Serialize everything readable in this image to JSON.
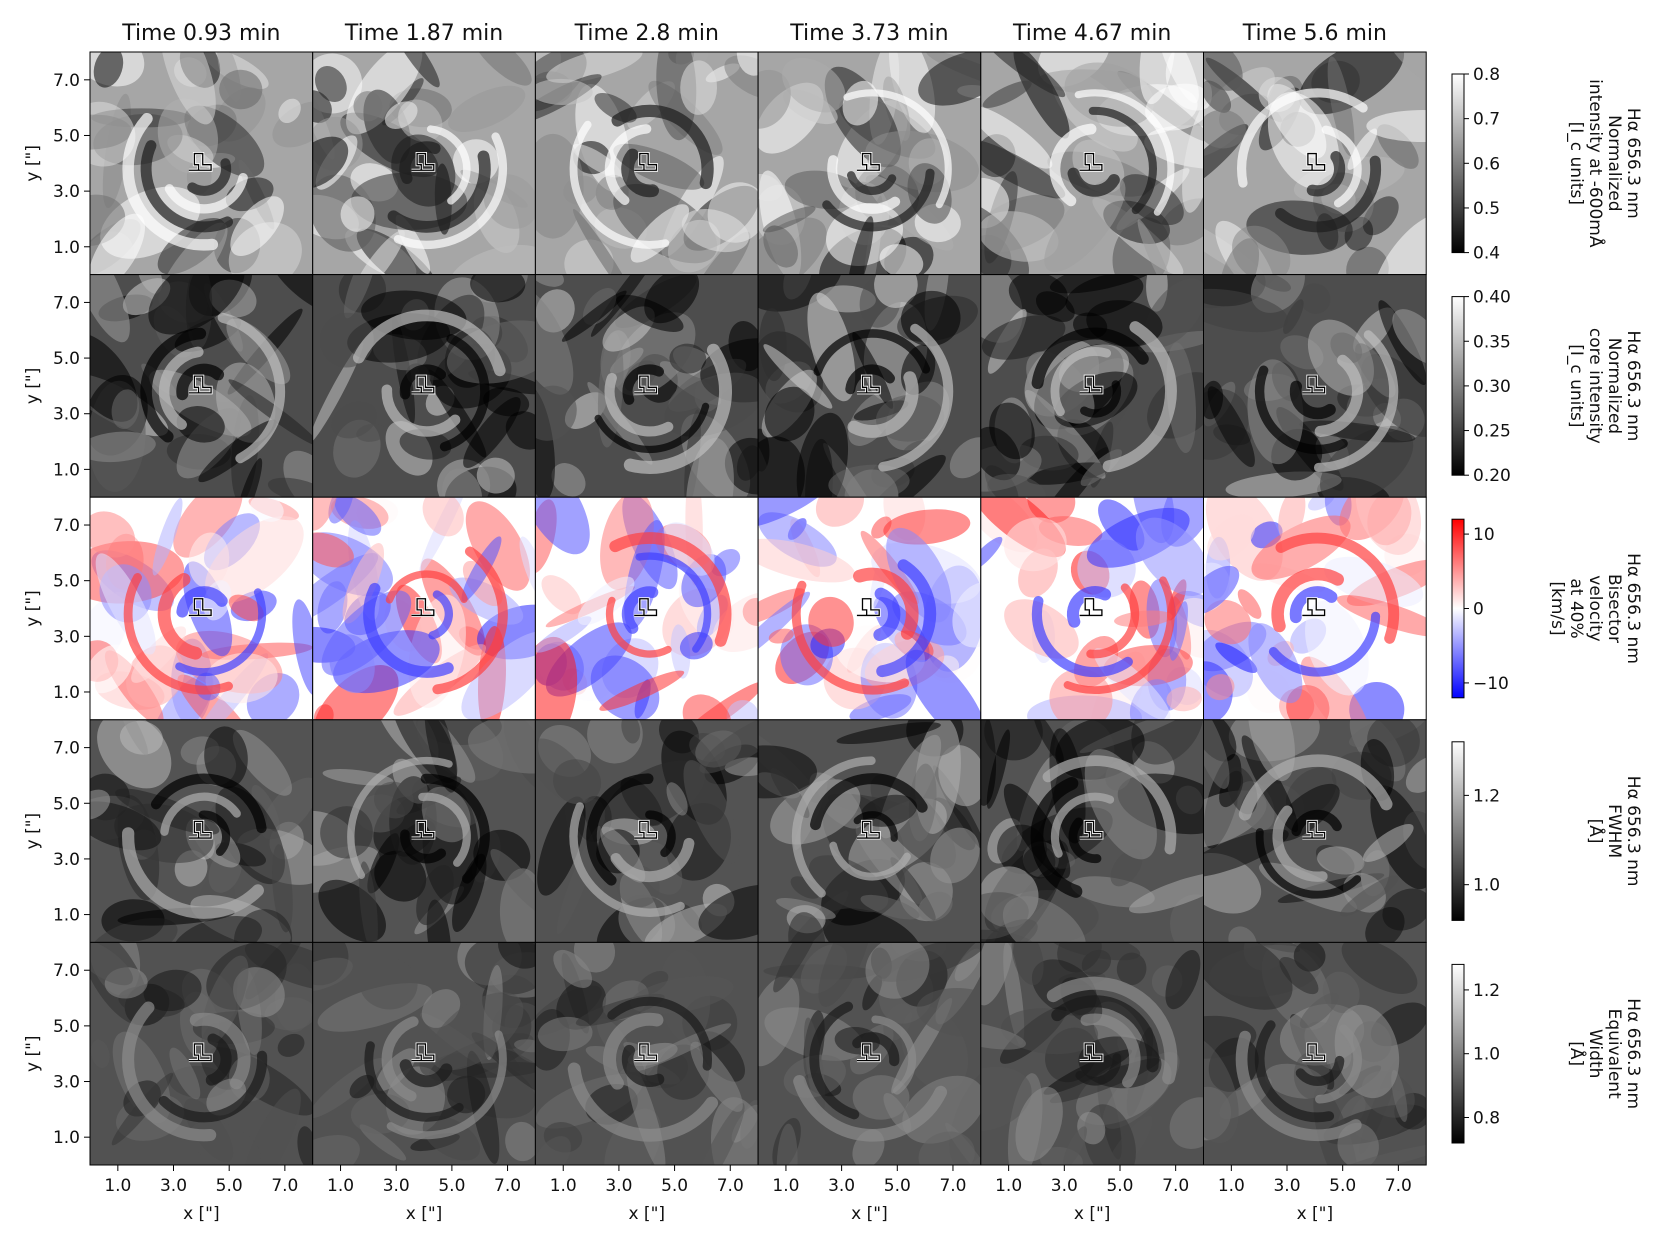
{
  "chart_data": {
    "type": "heatmap",
    "columns": [
      "Time 0.93 min",
      "Time 1.87 min",
      "Time 2.8 min",
      "Time 3.73 min",
      "Time 4.67 min",
      "Time 5.6 min"
    ],
    "xlabel": "x [\"]",
    "ylabel": "y [\"]",
    "x_ticks": [
      "1.0",
      "3.0",
      "5.0",
      "7.0"
    ],
    "y_ticks": [
      "7.0",
      "5.0",
      "3.0",
      "1.0"
    ],
    "xlim": [
      0,
      8
    ],
    "ylim": [
      0,
      8
    ],
    "contour_color": "#000000",
    "rows": [
      {
        "label_lines": [
          "Hα 656.3 nm",
          "Normalized",
          "intensity at -600mÅ",
          "[I_c units]"
        ],
        "cmap": "gray",
        "vmin": 0.4,
        "vmax": 0.8,
        "ticks": [
          "0.8",
          "0.7",
          "0.6",
          "0.5",
          "0.4"
        ],
        "tick_values": [
          0.8,
          0.7,
          0.6,
          0.5,
          0.4
        ],
        "base_level": 0.66,
        "contrast": 0.12
      },
      {
        "label_lines": [
          "Hα 656.3 nm",
          "Normalized",
          "core intensity",
          "[I_c units]"
        ],
        "cmap": "gray",
        "vmin": 0.2,
        "vmax": 0.4,
        "ticks": [
          "0.40",
          "0.35",
          "0.30",
          "0.25",
          "0.20"
        ],
        "tick_values": [
          0.4,
          0.35,
          0.3,
          0.25,
          0.2
        ],
        "base_level": 0.26,
        "contrast": 0.05
      },
      {
        "label_lines": [
          "Hα 656.3 nm",
          "Bisector",
          "velocity",
          "at 40%",
          "[km/s]"
        ],
        "cmap": "bwr",
        "vmin": -12,
        "vmax": 12,
        "ticks": [
          "10",
          "0",
          "−10"
        ],
        "tick_values": [
          10,
          0,
          -10
        ],
        "base_level": 0,
        "contrast": 5
      },
      {
        "label_lines": [
          "Hα 656.3 nm",
          "FWHM",
          "[Å]"
        ],
        "cmap": "gray",
        "vmin": 0.92,
        "vmax": 1.32,
        "ticks": [
          "1.2",
          "1.0"
        ],
        "tick_values": [
          1.2,
          1.0
        ],
        "base_level": 1.05,
        "contrast": 0.08
      },
      {
        "label_lines": [
          "Hα 656.3 nm",
          "Equivalent",
          "Width",
          "[Å]"
        ],
        "cmap": "gray",
        "vmin": 0.72,
        "vmax": 1.28,
        "ticks": [
          "1.2",
          "1.0",
          "0.8"
        ],
        "tick_values": [
          1.2,
          1.0,
          0.8
        ],
        "base_level": 0.9,
        "contrast": 0.07
      }
    ]
  }
}
